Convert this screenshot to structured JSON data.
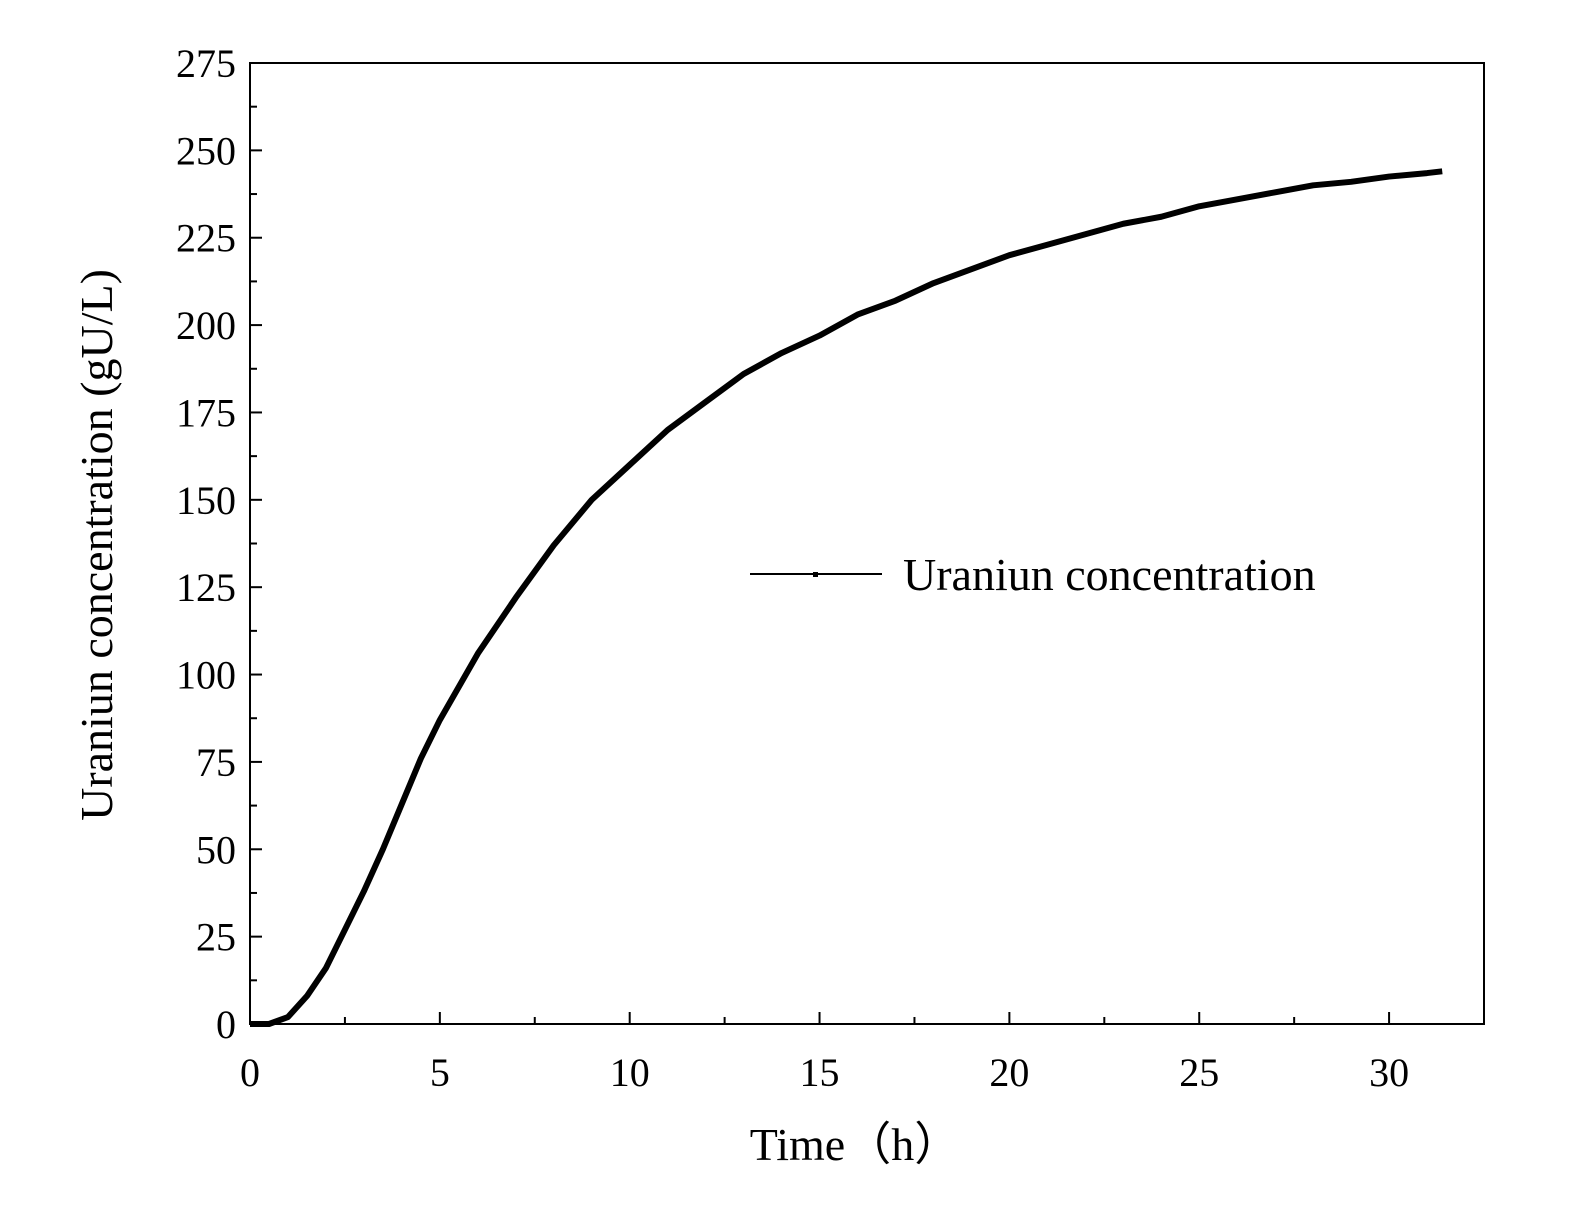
{
  "chart_data": {
    "type": "line",
    "x_label": "Time（h）",
    "y_label": "Uraniun concentration (gU/L)",
    "x": [
      0,
      0.5,
      1,
      1.5,
      2,
      2.5,
      3,
      3.5,
      4,
      4.5,
      5,
      6,
      7,
      8,
      9,
      10,
      11,
      12,
      13,
      14,
      15,
      16,
      17,
      18,
      19,
      20,
      21,
      22,
      23,
      24,
      25,
      26,
      27,
      28,
      29,
      30,
      31,
      31.4
    ],
    "series": [
      {
        "name": "Uraniun concentration",
        "color": "#000000",
        "values": [
          0,
          0,
          2,
          8,
          16,
          27,
          38,
          50,
          63,
          76,
          87,
          106,
          122,
          137,
          150,
          160,
          170,
          178,
          186,
          192,
          197,
          203,
          207,
          212,
          216,
          220,
          223,
          226,
          229,
          231,
          234,
          236,
          238,
          240,
          241,
          242.5,
          243.5,
          244
        ]
      }
    ],
    "xlim": [
      0,
      32.5
    ],
    "xticks": [
      0,
      5,
      10,
      15,
      20,
      25,
      30
    ],
    "ylim": [
      0,
      275
    ],
    "yticks": [
      0,
      25,
      50,
      75,
      100,
      125,
      150,
      175,
      200,
      225,
      250,
      275
    ],
    "legend": "right",
    "grid": false
  }
}
